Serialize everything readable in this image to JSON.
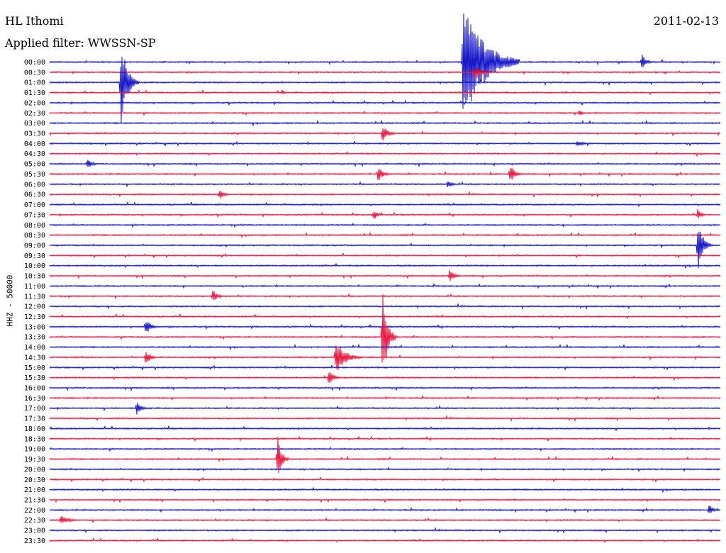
{
  "header": {
    "station": "HL Ithomi",
    "date": "2011-02-13",
    "filter": "Applied filter: WWSSN-SP"
  },
  "chart_data": {
    "type": "line",
    "title": "HL Ithomi",
    "subtitle": "Applied filter: WWSSN-SP",
    "date": "2011-02-13",
    "ylabel": "HHZ - 50000",
    "xlabel": "",
    "row_labels": [
      "00:00",
      "00:30",
      "01:00",
      "01:30",
      "02:00",
      "02:30",
      "03:00",
      "03:30",
      "04:00",
      "04:30",
      "05:00",
      "05:30",
      "06:00",
      "06:30",
      "07:00",
      "07:30",
      "08:00",
      "08:30",
      "09:00",
      "09:30",
      "10:00",
      "10:30",
      "11:00",
      "11:30",
      "12:00",
      "12:30",
      "13:00",
      "13:30",
      "14:00",
      "14:30",
      "15:00",
      "15:30",
      "16:00",
      "16:30",
      "17:00",
      "17:30",
      "18:00",
      "18:30",
      "19:00",
      "19:30",
      "20:00",
      "20:30",
      "21:00",
      "21:30",
      "22:00",
      "22:30",
      "23:00",
      "23:30"
    ],
    "row_interval_minutes": 30,
    "trace_colors": [
      "#1414c8",
      "#e8143c"
    ],
    "grid": false,
    "events": [
      {
        "row": 0,
        "minute": 18.5,
        "amplitude": 90,
        "duration_min": 2.5
      },
      {
        "row": 0,
        "minute": 26.5,
        "amplitude": 12,
        "duration_min": 0.5
      },
      {
        "row": 1,
        "minute": 19.0,
        "amplitude": 10,
        "duration_min": 1.0
      },
      {
        "row": 2,
        "minute": 3.2,
        "amplitude": 60,
        "duration_min": 0.8
      },
      {
        "row": 3,
        "minute": 10.4,
        "amplitude": 4,
        "duration_min": 0.4
      },
      {
        "row": 5,
        "minute": 23.7,
        "amplitude": 6,
        "duration_min": 0.4
      },
      {
        "row": 7,
        "minute": 14.9,
        "amplitude": 14,
        "duration_min": 0.6
      },
      {
        "row": 8,
        "minute": 23.6,
        "amplitude": 5,
        "duration_min": 0.8
      },
      {
        "row": 10,
        "minute": 1.7,
        "amplitude": 8,
        "duration_min": 0.6
      },
      {
        "row": 11,
        "minute": 14.7,
        "amplitude": 12,
        "duration_min": 0.6
      },
      {
        "row": 11,
        "minute": 20.6,
        "amplitude": 14,
        "duration_min": 0.6
      },
      {
        "row": 12,
        "minute": 17.8,
        "amplitude": 6,
        "duration_min": 0.6
      },
      {
        "row": 13,
        "minute": 7.6,
        "amplitude": 8,
        "duration_min": 0.6
      },
      {
        "row": 15,
        "minute": 14.5,
        "amplitude": 8,
        "duration_min": 0.5
      },
      {
        "row": 15,
        "minute": 29.0,
        "amplitude": 10,
        "duration_min": 0.4
      },
      {
        "row": 18,
        "minute": 29.0,
        "amplitude": 40,
        "duration_min": 0.6
      },
      {
        "row": 21,
        "minute": 17.9,
        "amplitude": 10,
        "duration_min": 0.6
      },
      {
        "row": 23,
        "minute": 7.3,
        "amplitude": 10,
        "duration_min": 0.6
      },
      {
        "row": 26,
        "minute": 4.3,
        "amplitude": 12,
        "duration_min": 0.6
      },
      {
        "row": 27,
        "minute": 14.9,
        "amplitude": 70,
        "duration_min": 0.6
      },
      {
        "row": 29,
        "minute": 4.3,
        "amplitude": 12,
        "duration_min": 0.6
      },
      {
        "row": 29,
        "minute": 12.8,
        "amplitude": 25,
        "duration_min": 1.2
      },
      {
        "row": 31,
        "minute": 12.5,
        "amplitude": 15,
        "duration_min": 0.5
      },
      {
        "row": 34,
        "minute": 3.9,
        "amplitude": 10,
        "duration_min": 0.6
      },
      {
        "row": 39,
        "minute": 10.2,
        "amplitude": 35,
        "duration_min": 0.5
      },
      {
        "row": 44,
        "minute": 29.5,
        "amplitude": 8,
        "duration_min": 0.5
      },
      {
        "row": 45,
        "minute": 0.5,
        "amplitude": 7,
        "duration_min": 1.0
      }
    ]
  }
}
